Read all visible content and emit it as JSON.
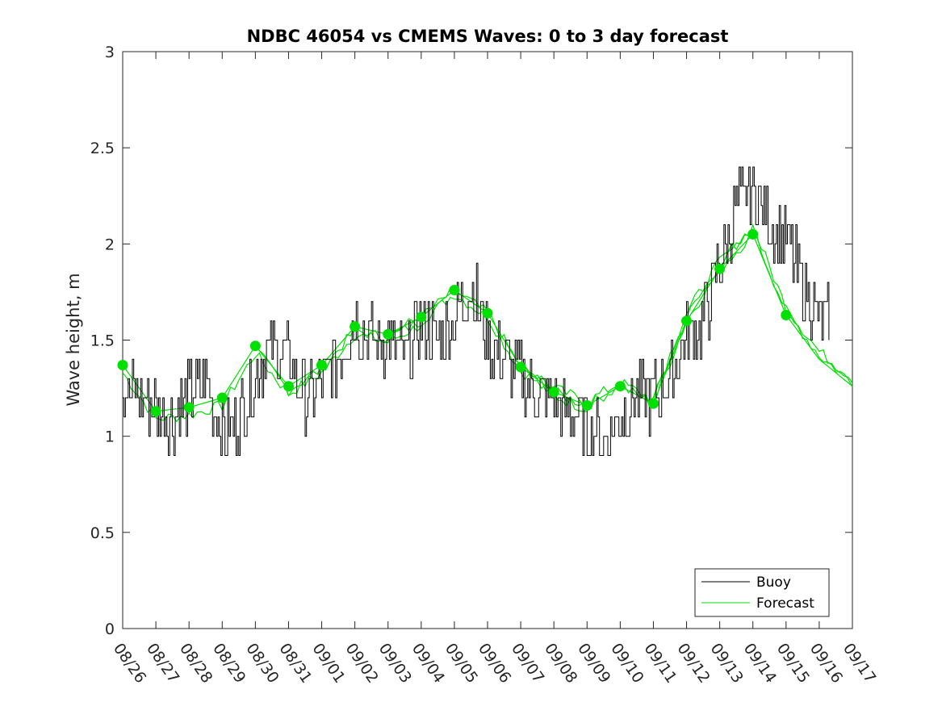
{
  "chart_data": {
    "type": "line",
    "title": "NDBC 46054 vs CMEMS Waves: 0 to 3 day forecast",
    "xlabel": "",
    "ylabel": "Wave height, m",
    "ylim": [
      0,
      3
    ],
    "yticks": [
      0,
      0.5,
      1,
      1.5,
      2,
      2.5,
      3
    ],
    "ytick_labels": [
      "0",
      "0.5",
      "1",
      "1.5",
      "2",
      "2.5",
      "3"
    ],
    "xlim": [
      "2019-08-26",
      "2019-09-17"
    ],
    "xtick_labels": [
      "08/26",
      "08/27",
      "08/28",
      "08/29",
      "08/30",
      "08/31",
      "09/01",
      "09/02",
      "09/03",
      "09/04",
      "09/05",
      "09/06",
      "09/07",
      "09/08",
      "09/09",
      "09/10",
      "09/11",
      "09/12",
      "09/13",
      "09/14",
      "09/15",
      "09/16",
      "09/17"
    ],
    "grid": false,
    "legend": {
      "position": "bottom-right",
      "entries": [
        "Buoy",
        "Forecast"
      ]
    },
    "colors": {
      "buoy": "#000000",
      "forecast": "#00e000",
      "axis": "#262626"
    },
    "series": [
      {
        "name": "Buoy",
        "x": [
          "2019-08-26",
          "2019-08-26",
          "2019-08-27",
          "2019-08-27",
          "2019-08-28",
          "2019-08-28",
          "2019-08-29",
          "2019-08-29",
          "2019-08-30",
          "2019-08-30",
          "2019-08-31",
          "2019-08-31",
          "2019-09-01",
          "2019-09-01",
          "2019-09-02",
          "2019-09-02",
          "2019-09-03",
          "2019-09-03",
          "2019-09-04",
          "2019-09-04",
          "2019-09-05",
          "2019-09-05",
          "2019-09-06",
          "2019-09-06",
          "2019-09-07",
          "2019-09-07",
          "2019-09-08",
          "2019-09-08",
          "2019-09-09",
          "2019-09-09",
          "2019-09-10",
          "2019-09-10",
          "2019-09-11",
          "2019-09-11",
          "2019-09-12",
          "2019-09-12",
          "2019-09-13",
          "2019-09-13",
          "2019-09-14",
          "2019-09-14",
          "2019-09-15",
          "2019-09-15",
          "2019-09-16",
          "2019-09-16"
        ],
        "y": [
          1.25,
          1.2,
          1.15,
          1.1,
          1.2,
          1.3,
          1.0,
          1.1,
          1.3,
          1.5,
          1.4,
          1.2,
          1.3,
          1.4,
          1.6,
          1.5,
          1.5,
          1.4,
          1.6,
          1.5,
          1.6,
          1.8,
          1.5,
          1.4,
          1.3,
          1.2,
          1.2,
          1.1,
          1.05,
          1.0,
          1.1,
          1.2,
          1.2,
          1.3,
          1.5,
          1.6,
          1.9,
          2.2,
          2.3,
          2.1,
          2.0,
          1.8,
          1.6,
          1.6
        ]
      },
      {
        "name": "Forecast",
        "x": [
          "2019-08-26",
          "2019-08-27",
          "2019-08-28",
          "2019-08-29",
          "2019-08-30",
          "2019-08-31",
          "2019-09-01",
          "2019-09-02",
          "2019-09-03",
          "2019-09-04",
          "2019-09-05",
          "2019-09-06",
          "2019-09-07",
          "2019-09-08",
          "2019-09-09",
          "2019-09-10",
          "2019-09-11",
          "2019-09-12",
          "2019-09-13",
          "2019-09-14",
          "2019-09-15",
          "2019-09-16",
          "2019-09-17"
        ],
        "y": [
          1.37,
          1.13,
          1.15,
          1.2,
          1.47,
          1.26,
          1.37,
          1.57,
          1.53,
          1.62,
          1.76,
          1.64,
          1.36,
          1.23,
          1.16,
          1.26,
          1.17,
          1.6,
          1.87,
          2.05,
          1.63,
          1.4,
          1.26
        ]
      }
    ],
    "forecast_markers": {
      "x": [
        "2019-08-26",
        "2019-08-27",
        "2019-08-28",
        "2019-08-29",
        "2019-08-30",
        "2019-08-31",
        "2019-09-01",
        "2019-09-02",
        "2019-09-03",
        "2019-09-04",
        "2019-09-05",
        "2019-09-06",
        "2019-09-07",
        "2019-09-08",
        "2019-09-09",
        "2019-09-10",
        "2019-09-11",
        "2019-09-12",
        "2019-09-13",
        "2019-09-14",
        "2019-09-15"
      ],
      "y": [
        1.37,
        1.13,
        1.15,
        1.2,
        1.47,
        1.26,
        1.37,
        1.57,
        1.53,
        1.62,
        1.76,
        1.64,
        1.36,
        1.23,
        1.16,
        1.26,
        1.17,
        1.6,
        1.87,
        2.05,
        1.63
      ]
    }
  }
}
